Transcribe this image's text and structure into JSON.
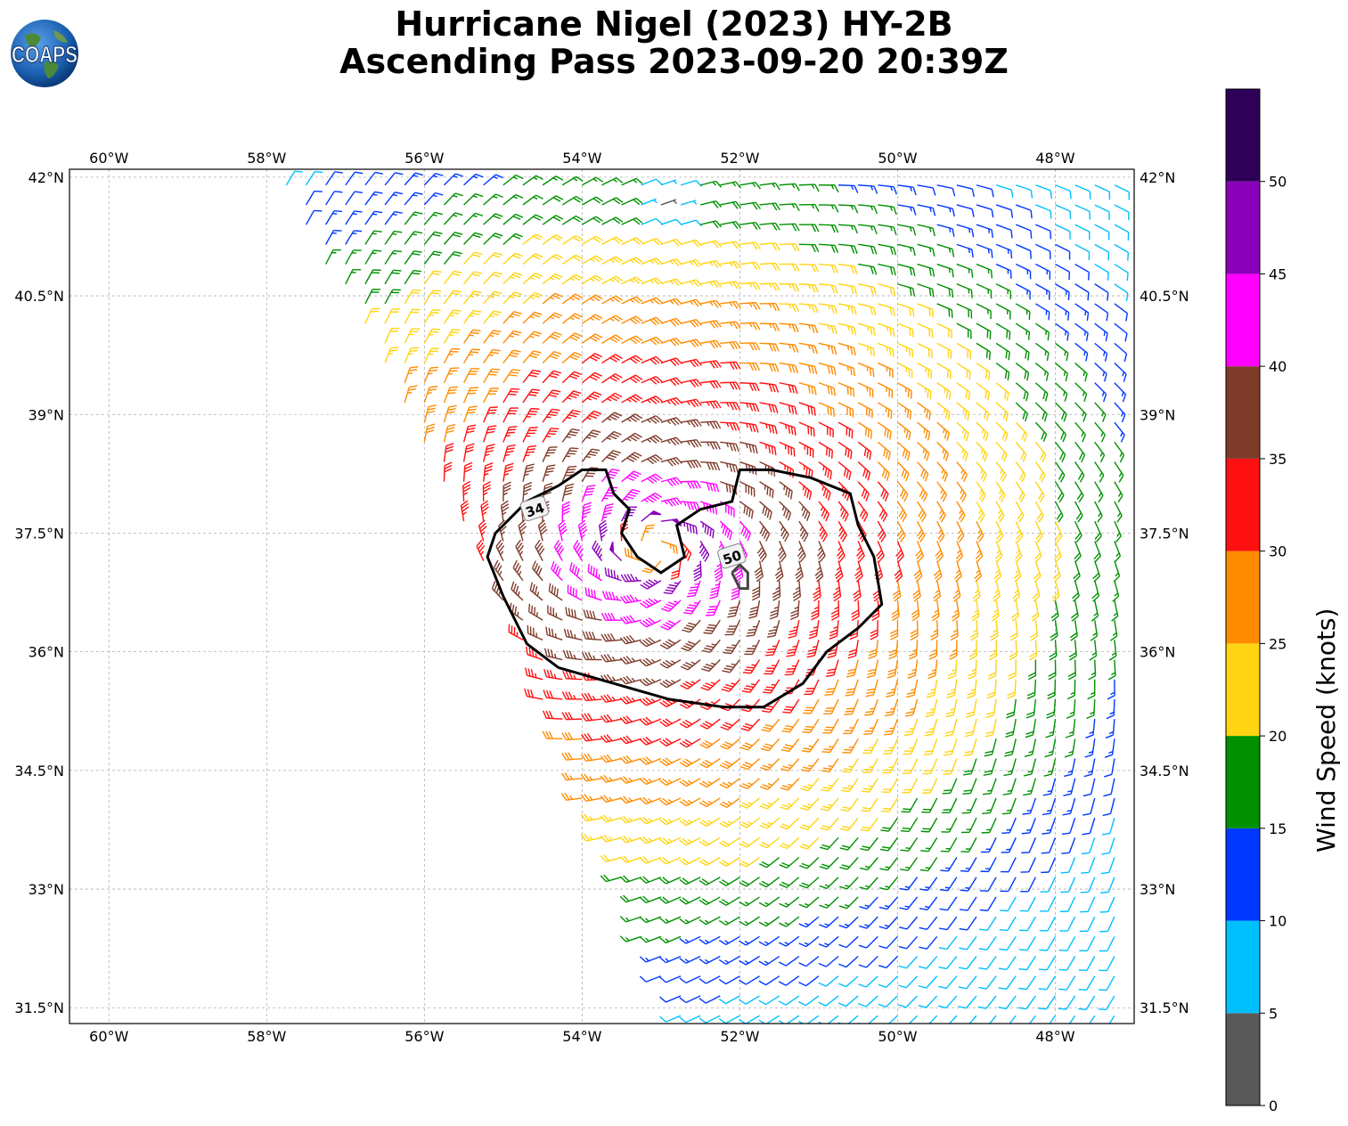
{
  "title": {
    "line1": "Hurricane Nigel (2023) HY-2B",
    "line2": "Ascending Pass 2023-09-20 20:39Z"
  },
  "logo": {
    "text": "COAPS",
    "icon": "globe-icon"
  },
  "map": {
    "lon_range": [
      -60.5,
      -47.0
    ],
    "lat_range": [
      31.3,
      42.1
    ],
    "lon_ticks": [
      {
        "value": -60,
        "label": "60°W"
      },
      {
        "value": -58,
        "label": "58°W"
      },
      {
        "value": -56,
        "label": "56°W"
      },
      {
        "value": -54,
        "label": "54°W"
      },
      {
        "value": -52,
        "label": "52°W"
      },
      {
        "value": -50,
        "label": "50°W"
      },
      {
        "value": -48,
        "label": "48°W"
      }
    ],
    "lat_ticks": [
      {
        "value": 31.5,
        "label": "31.5°N"
      },
      {
        "value": 33,
        "label": "33°N"
      },
      {
        "value": 34.5,
        "label": "34.5°N"
      },
      {
        "value": 36,
        "label": "36°N"
      },
      {
        "value": 37.5,
        "label": "37.5°N"
      },
      {
        "value": 39,
        "label": "39°N"
      },
      {
        "value": 40.5,
        "label": "40.5°N"
      },
      {
        "value": 42,
        "label": "42°N"
      }
    ],
    "gridlines": true,
    "storm_center": {
      "lon": -53.1,
      "lat": 37.3
    },
    "swath_corners": [
      [
        -57.9,
        42.1
      ],
      [
        -47.0,
        42.1
      ],
      [
        -47.0,
        31.3
      ],
      [
        -52.8,
        31.3
      ],
      [
        -55.3,
        37.2
      ]
    ],
    "contours": [
      {
        "label": "34",
        "label_lon": -54.6,
        "label_lat": 37.8,
        "points": [
          [
            -55.0,
            36.7
          ],
          [
            -55.2,
            37.2
          ],
          [
            -55.1,
            37.5
          ],
          [
            -54.7,
            37.9
          ],
          [
            -54.3,
            38.1
          ],
          [
            -54.0,
            38.3
          ],
          [
            -53.7,
            38.3
          ],
          [
            -53.6,
            38.0
          ],
          [
            -53.4,
            37.8
          ],
          [
            -53.5,
            37.5
          ],
          [
            -53.3,
            37.2
          ],
          [
            -53.0,
            37.0
          ],
          [
            -52.7,
            37.2
          ],
          [
            -52.8,
            37.6
          ],
          [
            -52.5,
            37.8
          ],
          [
            -52.1,
            37.9
          ],
          [
            -52.0,
            38.3
          ],
          [
            -51.6,
            38.3
          ],
          [
            -51.1,
            38.2
          ],
          [
            -50.6,
            38.0
          ],
          [
            -50.5,
            37.6
          ],
          [
            -50.3,
            37.2
          ],
          [
            -50.2,
            36.6
          ],
          [
            -50.5,
            36.3
          ],
          [
            -50.9,
            36.0
          ],
          [
            -51.2,
            35.6
          ],
          [
            -51.7,
            35.3
          ],
          [
            -52.2,
            35.3
          ],
          [
            -52.9,
            35.4
          ],
          [
            -53.6,
            35.6
          ],
          [
            -54.3,
            35.8
          ],
          [
            -54.7,
            36.1
          ],
          [
            -55.0,
            36.7
          ]
        ]
      },
      {
        "label": "50",
        "label_lon": -52.1,
        "label_lat": 37.2,
        "points": [
          [
            -52.1,
            37.0
          ],
          [
            -52.0,
            36.8
          ],
          [
            -51.9,
            36.8
          ],
          [
            -51.9,
            37.0
          ],
          [
            -52.0,
            37.1
          ],
          [
            -52.1,
            37.0
          ]
        ]
      }
    ]
  },
  "colorbar": {
    "label": "Wind Speed (knots)",
    "min": 0,
    "max": 55,
    "bins": [
      {
        "from": 0,
        "to": 5,
        "color": "#595959"
      },
      {
        "from": 5,
        "to": 10,
        "color": "#00bfff"
      },
      {
        "from": 10,
        "to": 15,
        "color": "#0038ff"
      },
      {
        "from": 15,
        "to": 20,
        "color": "#009000"
      },
      {
        "from": 20,
        "to": 25,
        "color": "#ffd412"
      },
      {
        "from": 25,
        "to": 30,
        "color": "#ff8c00"
      },
      {
        "from": 30,
        "to": 35,
        "color": "#ff1010"
      },
      {
        "from": 35,
        "to": 40,
        "color": "#7f3b2a"
      },
      {
        "from": 40,
        "to": 45,
        "color": "#ff00ff"
      },
      {
        "from": 45,
        "to": 50,
        "color": "#8a00b8"
      },
      {
        "from": 50,
        "to": 55,
        "color": "#2e0058"
      }
    ],
    "tick_labels": [
      "0",
      "5",
      "10",
      "15",
      "20",
      "25",
      "30",
      "35",
      "40",
      "45",
      "50"
    ]
  }
}
